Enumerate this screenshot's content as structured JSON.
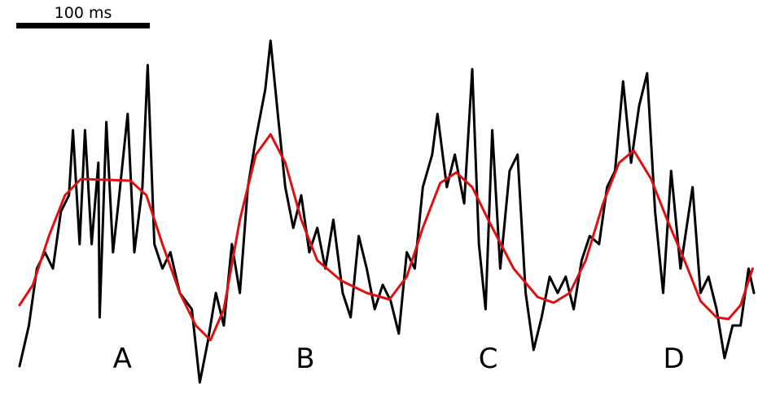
{
  "chart_data": {
    "type": "line",
    "scale_bar": {
      "value": 100,
      "label": "100 ms"
    },
    "xlim": [
      0,
      550
    ],
    "ylim": [
      0,
      440
    ],
    "annotations": [
      {
        "text": "A",
        "x": 77
      },
      {
        "text": "B",
        "x": 214
      },
      {
        "text": "C",
        "x": 351
      },
      {
        "text": "D",
        "x": 490
      }
    ],
    "series": [
      {
        "color": "#000000",
        "x": [
          0,
          7,
          13,
          19,
          25,
          31,
          37,
          40,
          45,
          49,
          54,
          59,
          60,
          65,
          70,
          74,
          81,
          86,
          92,
          96,
          101,
          107,
          113,
          120,
          129,
          135,
          141,
          147,
          153,
          159,
          165,
          171,
          177,
          184,
          188,
          194,
          199,
          205,
          211,
          217,
          223,
          229,
          235,
          242,
          248,
          254,
          260,
          266,
          272,
          278,
          284,
          290,
          296,
          302,
          309,
          313,
          320,
          326,
          333,
          339,
          344,
          349,
          354,
          360,
          367,
          373,
          379,
          385,
          391,
          397,
          403,
          409,
          415,
          421,
          427,
          434,
          440,
          446,
          452,
          458,
          464,
          470,
          476,
          482,
          488,
          495,
          504,
          510,
          516,
          522,
          528,
          534,
          540,
          546,
          550
        ],
        "values": [
          30,
          80,
          150,
          170,
          150,
          220,
          240,
          320,
          180,
          320,
          180,
          280,
          90,
          330,
          170,
          230,
          340,
          170,
          250,
          400,
          180,
          150,
          170,
          120,
          100,
          10,
          60,
          120,
          80,
          180,
          120,
          250,
          310,
          370,
          430,
          330,
          250,
          200,
          240,
          170,
          200,
          150,
          210,
          120,
          90,
          190,
          150,
          100,
          130,
          110,
          70,
          170,
          150,
          250,
          290,
          340,
          250,
          290,
          230,
          395,
          180,
          100,
          320,
          150,
          270,
          290,
          120,
          50,
          90,
          140,
          120,
          140,
          100,
          160,
          190,
          180,
          250,
          270,
          380,
          280,
          350,
          390,
          220,
          120,
          270,
          150,
          250,
          120,
          140,
          100,
          40,
          80,
          80,
          150,
          120
        ]
      },
      {
        "color": "#dd1111",
        "x": [
          0,
          10,
          22,
          34,
          46,
          83,
          95,
          107,
          120,
          132,
          143,
          153,
          165,
          177,
          188,
          199,
          211,
          223,
          241,
          260,
          277,
          290,
          302,
          315,
          327,
          339,
          351,
          370,
          388,
          400,
          412,
          424,
          437,
          449,
          460,
          473,
          485,
          498,
          510,
          522,
          531,
          540,
          549
        ],
        "values": [
          105,
          130,
          190,
          240,
          260,
          258,
          240,
          180,
          120,
          80,
          62,
          100,
          210,
          290,
          315,
          280,
          210,
          160,
          135,
          120,
          112,
          140,
          200,
          255,
          268,
          250,
          210,
          150,
          115,
          108,
          120,
          160,
          230,
          280,
          295,
          260,
          210,
          160,
          110,
          90,
          88,
          105,
          150
        ]
      }
    ]
  }
}
